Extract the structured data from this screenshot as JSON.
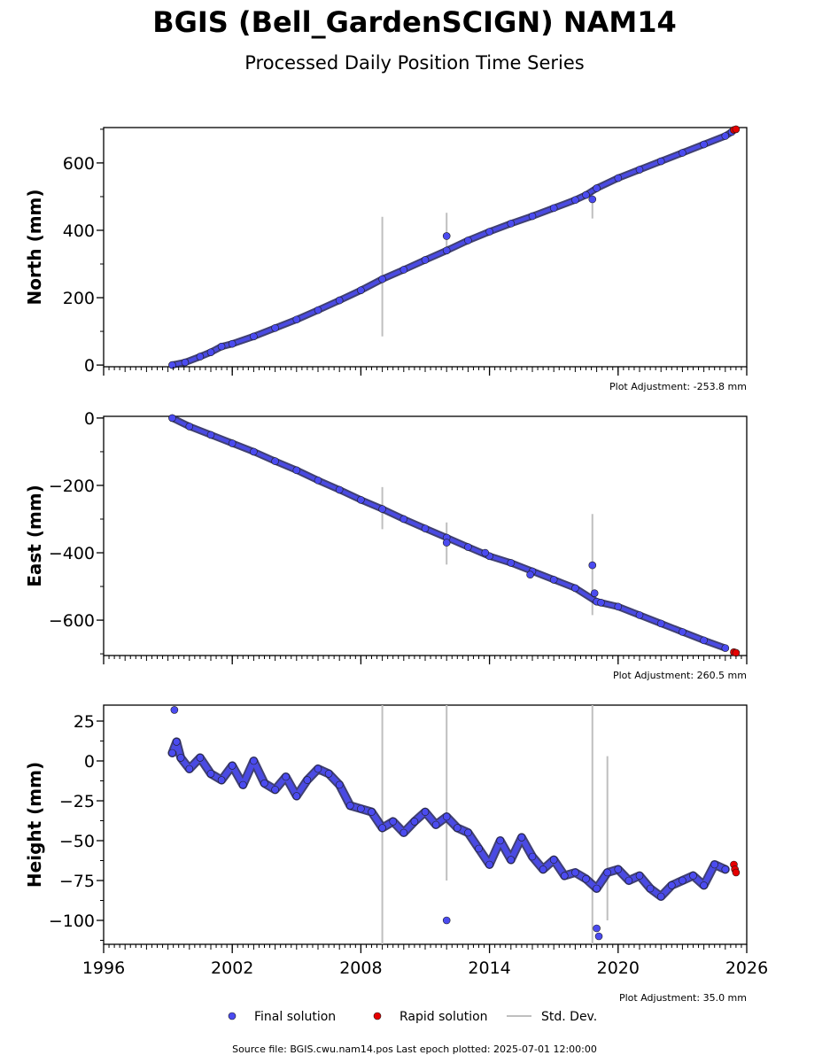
{
  "title": "BGIS (Bell_GardenSCIGN) NAM14",
  "subtitle": "Processed Daily Position Time Series",
  "footer": "Source file: BGIS.cwu.nam14.pos  Last epoch plotted: 2025-07-01 12:00:00",
  "colors": {
    "final": "#4b4bf0",
    "rapid": "#e60000",
    "stddev": "#bfbfbf",
    "marker_edge": "#1a1a1a"
  },
  "legend": [
    {
      "label": "Final solution",
      "marker": "dot",
      "color": "#4b4bf0"
    },
    {
      "label": "Rapid solution",
      "marker": "dot",
      "color": "#e60000"
    },
    {
      "label": "Std. Dev.",
      "marker": "line",
      "color": "#bfbfbf"
    }
  ],
  "chart_data": [
    {
      "type": "scatter",
      "ylabel": "North (mm)",
      "xlim": [
        1996,
        2026
      ],
      "ylim": [
        -5,
        705
      ],
      "yticks": [
        0,
        200,
        400,
        600
      ],
      "ytick_labels": [
        "0",
        "200",
        "400",
        "600"
      ],
      "adjustment": "Plot Adjustment: -253.8 mm",
      "show_xtick_labels": false,
      "series": [
        {
          "name": "Final solution",
          "x": [
            1999.2,
            1999.8,
            2000.5,
            2001.0,
            2001.5,
            2002.0,
            2003.0,
            2004.0,
            2005.0,
            2006.0,
            2007.0,
            2008.0,
            2009.0,
            2010.0,
            2011.0,
            2012.0,
            2013.0,
            2014.0,
            2015.0,
            2016.0,
            2017.0,
            2018.0,
            2018.5,
            2019.0,
            2020.0,
            2021.0,
            2022.0,
            2023.0,
            2024.0,
            2025.0,
            2025.3,
            2012.0,
            2018.8
          ],
          "y": [
            0,
            8,
            25,
            38,
            55,
            63,
            85,
            110,
            135,
            163,
            192,
            222,
            255,
            283,
            312,
            340,
            370,
            396,
            420,
            442,
            466,
            490,
            505,
            525,
            555,
            580,
            605,
            630,
            655,
            680,
            692,
            383,
            492
          ]
        },
        {
          "name": "Rapid solution",
          "x": [
            2025.4,
            2025.5
          ],
          "y": [
            698,
            700
          ]
        }
      ],
      "stddev_bars": [
        {
          "x": 2009.0,
          "low": 85,
          "high": 440
        },
        {
          "x": 2012.0,
          "low": 335,
          "high": 452
        },
        {
          "x": 2018.8,
          "low": 435,
          "high": 525
        }
      ]
    },
    {
      "type": "scatter",
      "ylabel": "East (mm)",
      "xlim": [
        1996,
        2026
      ],
      "ylim": [
        -705,
        5
      ],
      "yticks": [
        0,
        -200,
        -400,
        -600
      ],
      "ytick_labels": [
        "0",
        "−200",
        "−400",
        "−600"
      ],
      "adjustment": "Plot Adjustment: 260.5 mm",
      "show_xtick_labels": false,
      "series": [
        {
          "name": "Final solution",
          "x": [
            1999.2,
            2000.0,
            2001.0,
            2002.0,
            2003.0,
            2004.0,
            2005.0,
            2006.0,
            2007.0,
            2008.0,
            2009.0,
            2010.0,
            2011.0,
            2012.0,
            2013.0,
            2014.0,
            2015.0,
            2016.0,
            2017.0,
            2018.0,
            2019.0,
            2020.0,
            2021.0,
            2022.0,
            2023.0,
            2024.0,
            2025.0,
            2012.0,
            2013.8,
            2015.9,
            2018.8,
            2018.9,
            2019.2
          ],
          "y": [
            0,
            -25,
            -50,
            -75,
            -100,
            -128,
            -155,
            -185,
            -213,
            -243,
            -270,
            -300,
            -328,
            -355,
            -383,
            -410,
            -430,
            -455,
            -480,
            -505,
            -545,
            -560,
            -585,
            -610,
            -635,
            -660,
            -683,
            -370,
            -400,
            -465,
            -437,
            -520,
            -548
          ]
        },
        {
          "name": "Rapid solution",
          "x": [
            2025.4,
            2025.5
          ],
          "y": [
            -695,
            -697
          ]
        }
      ],
      "stddev_bars": [
        {
          "x": 2009.0,
          "low": -330,
          "high": -205
        },
        {
          "x": 2012.0,
          "low": -435,
          "high": -310
        },
        {
          "x": 2018.8,
          "low": -585,
          "high": -285
        }
      ]
    },
    {
      "type": "scatter",
      "ylabel": "Height (mm)",
      "xlim": [
        1996,
        2026
      ],
      "ylim": [
        -115,
        35
      ],
      "yticks": [
        25,
        0,
        -25,
        -50,
        -75,
        -100
      ],
      "ytick_labels": [
        "25",
        "0",
        "−25",
        "−50",
        "−75",
        "−100"
      ],
      "xticks": [
        1996,
        2002,
        2008,
        2014,
        2020,
        2026
      ],
      "xtick_labels": [
        "1996",
        "2002",
        "2008",
        "2014",
        "2020",
        "2026"
      ],
      "adjustment": "Plot Adjustment: 35.0 mm",
      "show_xtick_labels": true,
      "series": [
        {
          "name": "Final solution",
          "x": [
            1999.2,
            1999.4,
            1999.6,
            2000.0,
            2000.5,
            2001.0,
            2001.5,
            2002.0,
            2002.5,
            2003.0,
            2003.5,
            2004.0,
            2004.5,
            2005.0,
            2005.5,
            2006.0,
            2006.5,
            2007.0,
            2007.5,
            2008.0,
            2008.5,
            2009.0,
            2009.5,
            2010.0,
            2010.5,
            2011.0,
            2011.5,
            2012.0,
            2012.5,
            2013.0,
            2013.5,
            2014.0,
            2014.5,
            2015.0,
            2015.5,
            2016.0,
            2016.5,
            2017.0,
            2017.5,
            2018.0,
            2018.5,
            2019.0,
            2019.5,
            2020.0,
            2020.5,
            2021.0,
            2021.5,
            2022.0,
            2022.5,
            2023.0,
            2023.5,
            2024.0,
            2024.5,
            2025.0,
            1999.3,
            2012.0,
            2019.0,
            2019.1
          ],
          "y": [
            5,
            12,
            2,
            -5,
            2,
            -8,
            -12,
            -3,
            -15,
            0,
            -14,
            -18,
            -10,
            -22,
            -12,
            -5,
            -8,
            -15,
            -28,
            -30,
            -32,
            -42,
            -38,
            -45,
            -38,
            -32,
            -40,
            -35,
            -42,
            -45,
            -55,
            -65,
            -50,
            -62,
            -48,
            -60,
            -68,
            -62,
            -72,
            -70,
            -74,
            -80,
            -70,
            -68,
            -75,
            -72,
            -80,
            -85,
            -78,
            -75,
            -72,
            -78,
            -65,
            -68,
            32,
            -100,
            -105,
            -110
          ]
        },
        {
          "name": "Rapid solution",
          "x": [
            2025.4,
            2025.45,
            2025.5
          ],
          "y": [
            -65,
            -68,
            -70
          ]
        }
      ],
      "stddev_bars": [
        {
          "x": 2009.0,
          "low": -115,
          "high": 35
        },
        {
          "x": 2012.0,
          "low": -75,
          "high": 35
        },
        {
          "x": 2018.8,
          "low": -115,
          "high": 35
        },
        {
          "x": 2019.5,
          "low": -100,
          "high": 3
        }
      ]
    }
  ]
}
